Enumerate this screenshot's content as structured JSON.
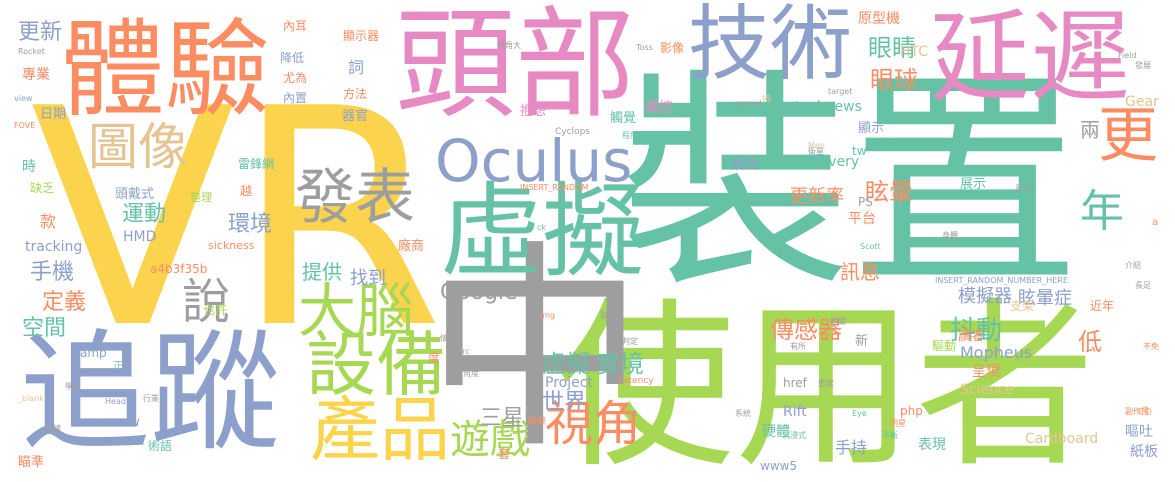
{
  "palette": {
    "yellow": "#fbd34d",
    "green": "#66c2a5",
    "lime": "#a6d854",
    "orange": "#fc8d62",
    "blue": "#8da0cb",
    "pink": "#e78ac3",
    "gray": "#9e9e9e",
    "tan": "#e5c494"
  },
  "words": [
    {
      "text": "VR",
      "color": "yellow"
    },
    {
      "text": "裝置",
      "color": "green"
    },
    {
      "text": "使用者",
      "color": "lime"
    },
    {
      "text": "中",
      "color": "gray"
    },
    {
      "text": "追蹤",
      "color": "blue"
    },
    {
      "text": "頭部",
      "color": "pink"
    },
    {
      "text": "體驗",
      "color": "orange"
    },
    {
      "text": "延遲",
      "color": "pink"
    },
    {
      "text": "技術",
      "color": "blue"
    },
    {
      "text": "虛擬",
      "color": "green"
    },
    {
      "text": "Oculus",
      "color": "blue"
    },
    {
      "text": "產品",
      "color": "yellow"
    },
    {
      "text": "設備",
      "color": "lime"
    },
    {
      "text": "大腦",
      "color": "lime"
    },
    {
      "text": "發表",
      "color": "gray"
    },
    {
      "text": "圖像",
      "color": "tan"
    },
    {
      "text": "更",
      "color": "orange"
    },
    {
      "text": "視角",
      "color": "orange"
    },
    {
      "text": "說",
      "color": "gray"
    },
    {
      "text": "年",
      "color": "green"
    },
    {
      "text": "遊戲",
      "color": "lime"
    },
    {
      "text": "虛擬",
      "color": "green"
    },
    {
      "text": "實境",
      "color": "green"
    },
    {
      "text": "Google",
      "color": "gray"
    },
    {
      "text": "世界",
      "color": "blue"
    },
    {
      "text": "三星",
      "color": "gray"
    },
    {
      "text": "傳感器",
      "color": "orange"
    },
    {
      "text": "抖動",
      "color": "green"
    },
    {
      "text": "眩暈",
      "color": "orange"
    },
    {
      "text": "更新率",
      "color": "orange"
    },
    {
      "text": "眼睛",
      "color": "green"
    },
    {
      "text": "眼球",
      "color": "orange"
    },
    {
      "text": "手機",
      "color": "blue"
    },
    {
      "text": "運動",
      "color": "green"
    },
    {
      "text": "定義",
      "color": "orange"
    },
    {
      "text": "空間",
      "color": "green"
    },
    {
      "text": "提供",
      "color": "green"
    },
    {
      "text": "找到",
      "color": "blue"
    },
    {
      "text": "訊息",
      "color": "orange"
    },
    {
      "text": "環境",
      "color": "blue"
    },
    {
      "text": "模擬器",
      "color": "blue"
    },
    {
      "text": "眩暈症",
      "color": "blue"
    },
    {
      "text": "Mopheus",
      "color": "blue"
    },
    {
      "text": "更新",
      "color": "blue"
    },
    {
      "text": "手持",
      "color": "blue"
    },
    {
      "text": "Project",
      "color": "blue"
    },
    {
      "text": "Cardboard",
      "color": "tan"
    },
    {
      "text": "Rift",
      "color": "blue"
    },
    {
      "text": "Science",
      "color": "tan"
    },
    {
      "text": "硬體",
      "color": "green"
    },
    {
      "text": "表現",
      "color": "green"
    },
    {
      "text": "嘔吐",
      "color": "blue"
    },
    {
      "text": "紙板",
      "color": "blue"
    },
    {
      "text": "低",
      "color": "orange"
    },
    {
      "text": "兩",
      "color": "gray"
    },
    {
      "text": "東西",
      "color": "blue"
    },
    {
      "text": "顯示",
      "color": "blue"
    },
    {
      "text": "原型機",
      "color": "orange"
    },
    {
      "text": "HTC",
      "color": "tan"
    },
    {
      "text": "Gear",
      "color": "tan"
    },
    {
      "text": "technews",
      "color": "green"
    },
    {
      "text": "delivery",
      "color": "green"
    },
    {
      "text": "tracking",
      "color": "blue"
    },
    {
      "text": "HMD",
      "color": "blue"
    },
    {
      "text": "頭戴式",
      "color": "blue"
    },
    {
      "text": "觸控",
      "color": "pink"
    },
    {
      "text": "觸覺",
      "color": "green"
    },
    {
      "text": "抱怨",
      "color": "pink"
    },
    {
      "text": "詞",
      "color": "blue"
    },
    {
      "text": "器官",
      "color": "blue"
    },
    {
      "text": "日期",
      "color": "blue"
    },
    {
      "text": "專業",
      "color": "orange"
    },
    {
      "text": "款",
      "color": "orange"
    },
    {
      "text": "時",
      "color": "green"
    },
    {
      "text": "平台",
      "color": "orange"
    },
    {
      "text": "展示",
      "color": "green"
    },
    {
      "text": "呈現",
      "color": "orange"
    },
    {
      "text": "讀者",
      "color": "orange"
    },
    {
      "text": "驅動",
      "color": "lime"
    },
    {
      "text": "支架",
      "color": "tan"
    },
    {
      "text": "近年",
      "color": "orange"
    },
    {
      "text": "www",
      "color": "blue"
    },
    {
      "text": "www5",
      "color": "blue"
    },
    {
      "text": "php",
      "color": "orange"
    },
    {
      "text": "href",
      "color": "gray"
    },
    {
      "text": "tw",
      "color": "green"
    },
    {
      "text": "PS",
      "color": "gray"
    },
    {
      "text": "amp",
      "color": "blue"
    },
    {
      "text": "cb",
      "color": "tan"
    },
    {
      "text": "新",
      "color": "gray"
    },
    {
      "text": "度",
      "color": "orange"
    },
    {
      "text": "套",
      "color": "orange"
    },
    {
      "text": "尤為",
      "color": "orange"
    },
    {
      "text": "內置",
      "color": "blue"
    },
    {
      "text": "降低",
      "color": "blue"
    },
    {
      "text": "內耳",
      "color": "orange"
    },
    {
      "text": "顯示器",
      "color": "orange"
    },
    {
      "text": "影像",
      "color": "orange"
    },
    {
      "text": "方法",
      "color": "orange"
    },
    {
      "text": "也許",
      "color": "lime"
    },
    {
      "text": "術語",
      "color": "green"
    },
    {
      "text": "瞄準",
      "color": "orange"
    },
    {
      "text": "越",
      "color": "orange"
    },
    {
      "text": "廠商",
      "color": "orange"
    },
    {
      "text": "整理",
      "color": "lime"
    },
    {
      "text": "缺乏",
      "color": "lime"
    },
    {
      "text": "雷鋒網",
      "color": "green"
    },
    {
      "text": "a4b3f35b",
      "color": "orange"
    },
    {
      "text": "sickness",
      "color": "orange"
    },
    {
      "text": "INSERT_RANDOM_NUMBER_HERE",
      "color": "blue"
    },
    {
      "text": "INSERT_RANDOM_",
      "color": "orange"
    },
    {
      "text": "zoneid",
      "color": "gray"
    },
    {
      "text": "Cyclops",
      "color": "gray"
    },
    {
      "text": "Latency",
      "color": "orange"
    },
    {
      "text": "Simulator",
      "color": "gray"
    },
    {
      "text": "Scott",
      "color": "green"
    },
    {
      "text": "Eye",
      "color": "green"
    },
    {
      "text": "Head",
      "color": "blue"
    },
    {
      "text": "Rocket",
      "color": "gray"
    },
    {
      "text": "Field",
      "color": "gray"
    },
    {
      "text": "Toss",
      "color": "gray"
    },
    {
      "text": "Men",
      "color": "tan"
    },
    {
      "text": "FOVE",
      "color": "orange"
    },
    {
      "text": "view",
      "color": "blue"
    },
    {
      "text": "target",
      "color": "gray"
    },
    {
      "text": "_blank",
      "color": "tan"
    },
    {
      "text": "img",
      "color": "orange"
    },
    {
      "text": "src",
      "color": "gray"
    },
    {
      "text": "ck",
      "color": "green"
    },
    {
      "text": "a",
      "color": "orange"
    },
    {
      "text": "x",
      "color": "gray"
    },
    {
      "text": "n",
      "color": "gray"
    },
    {
      "text": "發展",
      "color": "gray"
    },
    {
      "text": "正",
      "color": "green"
    },
    {
      "text": "持",
      "color": "tan"
    },
    {
      "text": "態度",
      "color": "gray"
    },
    {
      "text": "明星",
      "color": "orange"
    },
    {
      "text": "副作用",
      "color": "orange"
    },
    {
      "text": "介紹",
      "color": "gray"
    },
    {
      "text": "長足",
      "color": "gray"
    },
    {
      "text": "不免",
      "color": "orange"
    },
    {
      "text": "角度",
      "color": "gray"
    },
    {
      "text": "情況",
      "color": "gray"
    },
    {
      "text": "平衡",
      "color": "green"
    },
    {
      "text": "系統",
      "color": "gray"
    },
    {
      "text": "沉浸式",
      "color": "green"
    },
    {
      "text": "行業",
      "color": "gray"
    },
    {
      "text": "網線",
      "color": "gray"
    },
    {
      "text": "學習",
      "color": "gray"
    },
    {
      "text": "視角大",
      "color": "gray"
    },
    {
      "text": "取決",
      "color": "gray"
    },
    {
      "text": "判定",
      "color": "gray"
    },
    {
      "text": "相關",
      "color": "gray"
    },
    {
      "text": "有所",
      "color": "gray"
    },
    {
      "text": "意見",
      "color": "gray"
    },
    {
      "text": "身體",
      "color": "gray"
    },
    {
      "text": "娛樂",
      "color": "orange"
    },
    {
      "text": "衛星",
      "color": "gray"
    },
    {
      "text": "程序",
      "color": "green"
    }
  ]
}
